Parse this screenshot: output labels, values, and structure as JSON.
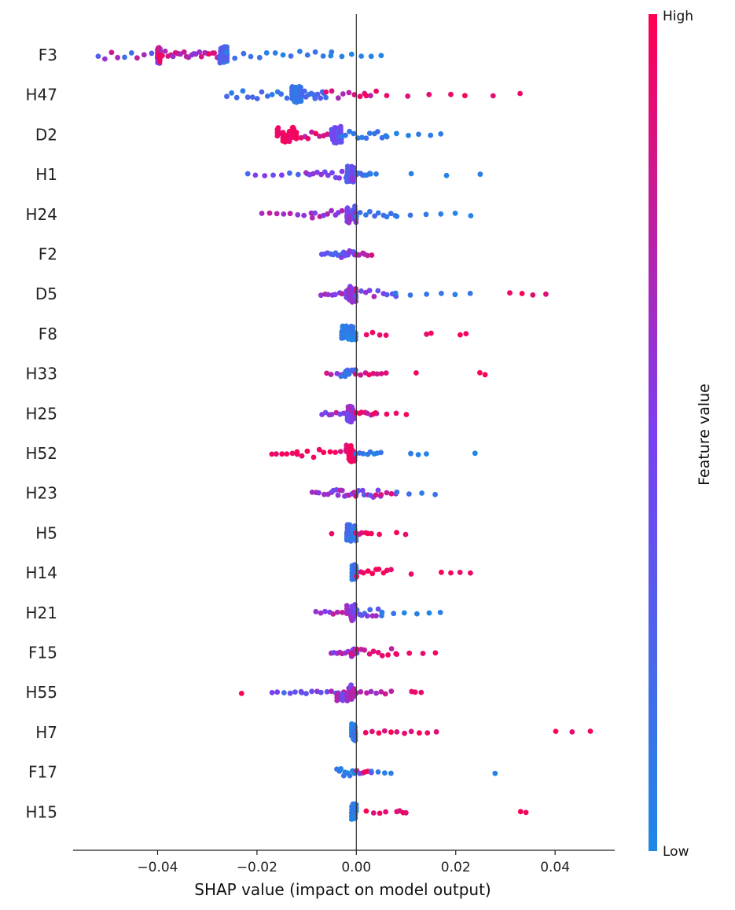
{
  "chart_data": {
    "type": "scatter",
    "subtype": "shap-beeswarm",
    "title": "",
    "xlabel": "SHAP value (impact on model output)",
    "ylabel": "",
    "xlim": [
      -0.057,
      0.052
    ],
    "xticks": [
      -0.04,
      -0.02,
      0.0,
      0.02,
      0.04
    ],
    "xtick_labels": [
      "−0.04",
      "−0.02",
      "0.00",
      "0.02",
      "0.04"
    ],
    "zero_line": 0.0,
    "grid": false,
    "colorbar": {
      "label": "Feature value",
      "high_label": "High",
      "low_label": "Low",
      "low_color": "#1e88e5",
      "high_color": "#ff0052"
    },
    "features": [
      {
        "name": "F3",
        "clusters": [
          [
            -0.052,
            -0.04,
            0.0,
            0.9,
            10
          ],
          [
            -0.04,
            -0.0395,
            0.4,
            0.98,
            30
          ],
          [
            -0.039,
            -0.028,
            0.55,
            0.98,
            22
          ],
          [
            -0.028,
            -0.026,
            0.05,
            0.35,
            20
          ],
          [
            -0.026,
            -0.005,
            0.0,
            0.2,
            14
          ],
          [
            -0.005,
            0.005,
            0.0,
            0.05,
            6
          ]
        ]
      },
      {
        "name": "H47",
        "clusters": [
          [
            -0.026,
            -0.013,
            0.05,
            0.3,
            14
          ],
          [
            -0.013,
            -0.011,
            0.05,
            0.2,
            22
          ],
          [
            -0.011,
            -0.006,
            0.1,
            0.3,
            12
          ],
          [
            -0.006,
            0.004,
            0.6,
            0.95,
            10
          ],
          [
            0.002,
            0.019,
            0.85,
            1.0,
            5
          ],
          [
            0.022,
            0.033,
            0.9,
            1.0,
            3
          ]
        ]
      },
      {
        "name": "D2",
        "clusters": [
          [
            -0.016,
            -0.012,
            0.9,
            1.0,
            14
          ],
          [
            -0.012,
            -0.005,
            0.7,
            1.0,
            10
          ],
          [
            -0.005,
            -0.003,
            0.15,
            0.5,
            18
          ],
          [
            -0.003,
            0.006,
            0.05,
            0.2,
            12
          ],
          [
            0.006,
            0.017,
            0.0,
            0.15,
            6
          ]
        ]
      },
      {
        "name": "H1",
        "clusters": [
          [
            -0.022,
            -0.01,
            0.2,
            0.6,
            8
          ],
          [
            -0.01,
            -0.002,
            0.35,
            0.7,
            12
          ],
          [
            -0.002,
            0.0,
            0.25,
            0.6,
            12
          ],
          [
            0.0,
            0.003,
            0.05,
            0.3,
            8
          ],
          [
            0.004,
            0.025,
            0.0,
            0.1,
            4
          ]
        ]
      },
      {
        "name": "H24",
        "clusters": [
          [
            -0.019,
            -0.009,
            0.5,
            0.9,
            8
          ],
          [
            -0.009,
            -0.002,
            0.4,
            0.8,
            10
          ],
          [
            -0.002,
            0.0,
            0.3,
            0.7,
            12
          ],
          [
            0.0,
            0.008,
            0.05,
            0.25,
            10
          ],
          [
            0.008,
            0.023,
            0.0,
            0.15,
            6
          ]
        ]
      },
      {
        "name": "F2",
        "clusters": [
          [
            -0.007,
            -0.003,
            0.1,
            0.5,
            8
          ],
          [
            -0.003,
            0.0,
            0.2,
            0.6,
            10
          ],
          [
            0.0,
            0.003,
            0.6,
            1.0,
            6
          ]
        ]
      },
      {
        "name": "D5",
        "clusters": [
          [
            -0.007,
            -0.002,
            0.4,
            0.8,
            8
          ],
          [
            -0.002,
            0.0,
            0.4,
            0.8,
            12
          ],
          [
            0.0,
            0.008,
            0.05,
            0.8,
            10
          ],
          [
            0.008,
            0.023,
            0.0,
            0.15,
            6
          ],
          [
            0.031,
            0.038,
            0.85,
            1.0,
            4
          ]
        ]
      },
      {
        "name": "F8",
        "clusters": [
          [
            -0.003,
            0.0,
            0.0,
            0.15,
            14
          ],
          [
            0.002,
            0.006,
            0.9,
            1.0,
            4
          ],
          [
            0.014,
            0.015,
            0.9,
            1.0,
            2
          ],
          [
            0.021,
            0.022,
            0.9,
            1.0,
            2
          ]
        ]
      },
      {
        "name": "H33",
        "clusters": [
          [
            -0.006,
            -0.003,
            0.5,
            0.95,
            4
          ],
          [
            -0.003,
            0.0,
            0.05,
            0.3,
            10
          ],
          [
            0.0,
            0.006,
            0.8,
            1.0,
            8
          ],
          [
            0.012,
            0.012,
            0.9,
            1.0,
            1
          ],
          [
            0.025,
            0.026,
            0.9,
            1.0,
            2
          ]
        ]
      },
      {
        "name": "H25",
        "clusters": [
          [
            -0.007,
            -0.002,
            0.4,
            0.8,
            8
          ],
          [
            -0.002,
            0.0,
            0.4,
            0.8,
            12
          ],
          [
            0.0,
            0.004,
            0.6,
            1.0,
            8
          ],
          [
            0.004,
            0.01,
            0.85,
            1.0,
            4
          ]
        ]
      },
      {
        "name": "H52",
        "clusters": [
          [
            -0.017,
            -0.012,
            0.9,
            1.0,
            6
          ],
          [
            -0.012,
            -0.002,
            0.85,
            1.0,
            10
          ],
          [
            -0.002,
            0.0,
            0.85,
            1.0,
            16
          ],
          [
            0.0,
            0.005,
            0.0,
            0.2,
            8
          ],
          [
            0.011,
            0.014,
            0.0,
            0.1,
            3
          ],
          [
            0.024,
            0.024,
            0.0,
            0.1,
            1
          ]
        ]
      },
      {
        "name": "H23",
        "clusters": [
          [
            -0.009,
            -0.005,
            0.5,
            0.9,
            6
          ],
          [
            -0.005,
            0.0,
            0.4,
            0.8,
            12
          ],
          [
            0.0,
            0.005,
            0.3,
            0.9,
            10
          ],
          [
            0.005,
            0.008,
            0.6,
            1.0,
            4
          ],
          [
            0.008,
            0.016,
            0.0,
            0.2,
            4
          ]
        ]
      },
      {
        "name": "H5",
        "clusters": [
          [
            -0.005,
            -0.005,
            0.9,
            1.0,
            1
          ],
          [
            -0.002,
            0.0,
            0.05,
            0.25,
            14
          ],
          [
            0.0,
            0.003,
            0.8,
            1.0,
            6
          ],
          [
            0.004,
            0.005,
            0.9,
            1.0,
            1
          ],
          [
            0.008,
            0.01,
            0.9,
            1.0,
            2
          ]
        ]
      },
      {
        "name": "H14",
        "clusters": [
          [
            -0.001,
            0.0,
            0.05,
            0.25,
            12
          ],
          [
            0.0,
            0.007,
            0.9,
            1.0,
            10
          ],
          [
            0.011,
            0.011,
            0.9,
            1.0,
            1
          ],
          [
            0.017,
            0.023,
            0.9,
            1.0,
            4
          ]
        ]
      },
      {
        "name": "H21",
        "clusters": [
          [
            -0.008,
            -0.002,
            0.4,
            0.8,
            8
          ],
          [
            -0.002,
            0.0,
            0.4,
            0.7,
            12
          ],
          [
            0.0,
            0.005,
            0.05,
            0.7,
            10
          ],
          [
            0.005,
            0.017,
            0.0,
            0.15,
            6
          ]
        ]
      },
      {
        "name": "F15",
        "clusters": [
          [
            -0.005,
            -0.001,
            0.4,
            0.9,
            8
          ],
          [
            -0.001,
            0.0,
            0.4,
            0.9,
            10
          ],
          [
            0.0,
            0.008,
            0.7,
            1.0,
            10
          ],
          [
            0.008,
            0.016,
            0.85,
            1.0,
            4
          ]
        ]
      },
      {
        "name": "H55",
        "clusters": [
          [
            -0.023,
            -0.023,
            0.85,
            1.0,
            1
          ],
          [
            -0.017,
            -0.011,
            0.2,
            0.7,
            6
          ],
          [
            -0.011,
            -0.004,
            0.3,
            0.8,
            8
          ],
          [
            -0.004,
            0.0,
            0.4,
            0.8,
            12
          ],
          [
            0.0,
            0.007,
            0.6,
            1.0,
            8
          ],
          [
            0.011,
            0.013,
            0.85,
            1.0,
            3
          ]
        ]
      },
      {
        "name": "H7",
        "clusters": [
          [
            -0.001,
            0.0,
            0.0,
            0.15,
            12
          ],
          [
            0.002,
            0.007,
            0.85,
            1.0,
            5
          ],
          [
            0.008,
            0.016,
            0.85,
            1.0,
            6
          ],
          [
            0.04,
            0.047,
            0.9,
            1.0,
            3
          ]
        ]
      },
      {
        "name": "F17",
        "clusters": [
          [
            -0.004,
            0.0,
            0.0,
            0.15,
            10
          ],
          [
            0.0,
            0.003,
            0.4,
            1.0,
            6
          ],
          [
            0.003,
            0.007,
            0.0,
            0.2,
            4
          ],
          [
            0.028,
            0.028,
            0.0,
            0.1,
            1
          ]
        ]
      },
      {
        "name": "H15",
        "clusters": [
          [
            -0.001,
            0.0,
            0.0,
            0.15,
            12
          ],
          [
            0.002,
            0.006,
            0.85,
            1.0,
            4
          ],
          [
            0.008,
            0.01,
            0.85,
            1.0,
            4
          ],
          [
            0.033,
            0.034,
            0.9,
            1.0,
            2
          ]
        ]
      }
    ]
  }
}
